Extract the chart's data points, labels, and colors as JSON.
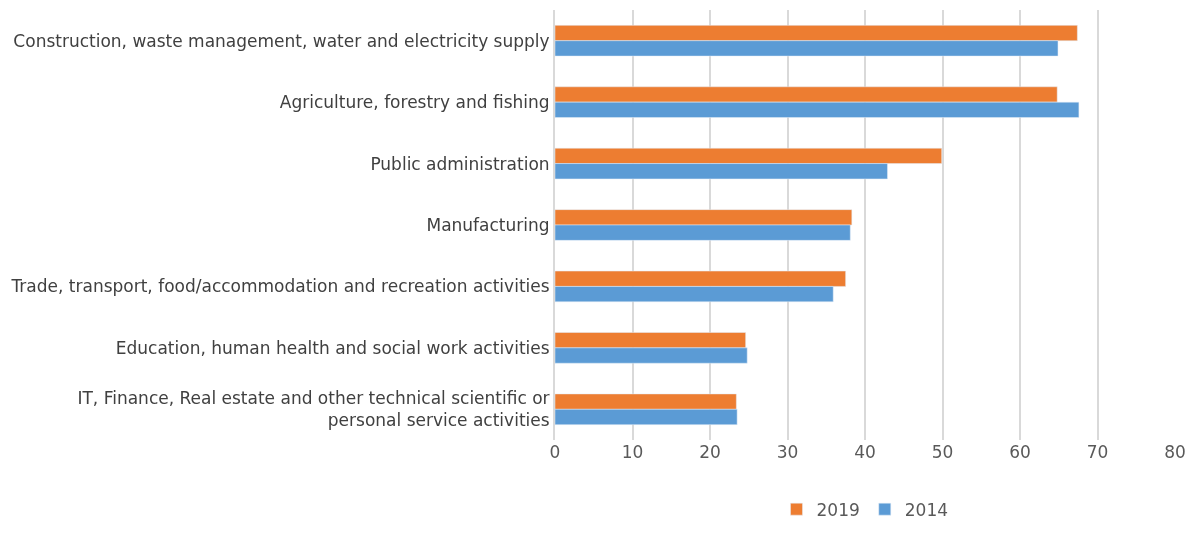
{
  "chart_data": {
    "type": "bar",
    "orientation": "horizontal",
    "categories": [
      "Construction, waste management, water and electricity supply",
      "Agriculture, forestry and fishing",
      "Public administration",
      "Manufacturing",
      "Trade, transport, food/accommodation and recreation activities",
      "Education, human health and social work activities",
      "IT, Finance, Real estate and other technical scientific or personal service activities"
    ],
    "series": [
      {
        "name": "2019",
        "color": "#ed7d31",
        "values": [
          67.4,
          64.8,
          49.9,
          38.3,
          37.5,
          24.6,
          23.4
        ]
      },
      {
        "name": "2014",
        "color": "#5b9bd5",
        "values": [
          64.9,
          67.6,
          42.9,
          38.1,
          35.9,
          24.8,
          23.5
        ]
      }
    ],
    "xlim": [
      0,
      80
    ],
    "xticks": [
      0,
      10,
      20,
      30,
      40,
      50,
      60,
      70,
      80
    ],
    "grid": "x",
    "legend": "bottom"
  }
}
